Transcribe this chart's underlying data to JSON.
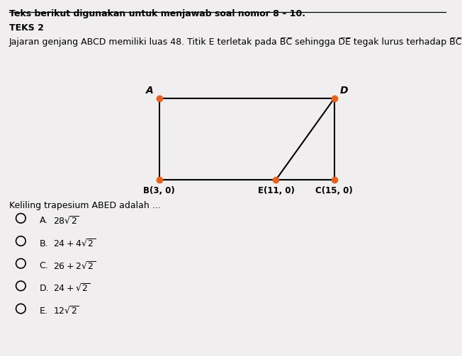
{
  "title_line": "Teks berikut digunakan untuk menjawab soal nomor 8 – 10.",
  "teks_label": "TEKS 2",
  "question_text": "Keliling trapesium ABED adalah ...",
  "option_labels": [
    "A.",
    "B.",
    "C.",
    "D.",
    "E."
  ],
  "option_math": [
    "$28\\sqrt{2}$",
    "$24 + 4\\sqrt{2}$",
    "$26 + 2\\sqrt{2}$",
    "$24 + \\sqrt{2}$",
    "$12\\sqrt{2}$"
  ],
  "points": {
    "A": [
      3,
      6
    ],
    "B": [
      3,
      0
    ],
    "C": [
      15,
      0
    ],
    "D": [
      15,
      6
    ],
    "E": [
      11,
      0
    ]
  },
  "dot_color": "#e8621a",
  "line_color": "#000000",
  "bg_color": "#f0eeee",
  "text_color": "#000000",
  "fig_width": 6.52,
  "fig_height": 5.03,
  "dpi": 100
}
